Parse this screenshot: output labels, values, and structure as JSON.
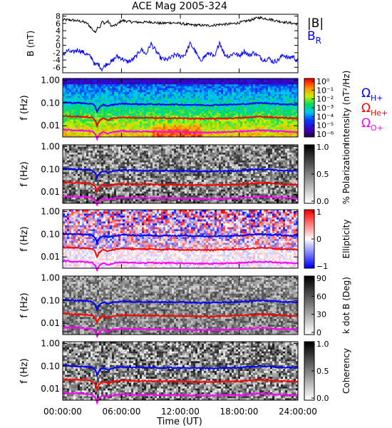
{
  "title": "ACE Mag 2005-324",
  "x_axis": {
    "label": "Time (UT)",
    "ticks": [
      "00:00:00",
      "06:00:00",
      "12:00:00",
      "18:00:00",
      "24:00:00"
    ],
    "range_hours": [
      0,
      24
    ]
  },
  "freq_ticks": [
    "1.00",
    "0.10",
    "0.01"
  ],
  "freq_range_hz": [
    0.0032,
    1.2
  ],
  "chart_data": [
    {
      "id": "field",
      "type": "line",
      "ylabel": "B (nT)",
      "ylim": [
        -7.5,
        8.5
      ],
      "yticks": [
        "8",
        "6",
        "4",
        "2",
        "0",
        "-2",
        "-4",
        "-6"
      ],
      "legend": [
        "|B|",
        "B_R"
      ],
      "series": [
        {
          "name": "|B|",
          "color": "#000000",
          "x": [
            0,
            1,
            2,
            2.5,
            3,
            3.3,
            3.6,
            3.8,
            4,
            4.3,
            4.6,
            5,
            5.5,
            6,
            7,
            8,
            9,
            10,
            11,
            12,
            13,
            14,
            15,
            16,
            17,
            18,
            19,
            20,
            21,
            22,
            23,
            24
          ],
          "y": [
            7.0,
            6.9,
            6.5,
            6.0,
            4.5,
            3.5,
            5.2,
            4.8,
            6.5,
            6.0,
            6.6,
            5.2,
            5.6,
            6.8,
            6.4,
            6.3,
            6.4,
            6.0,
            6.2,
            6.0,
            5.6,
            5.5,
            5.4,
            5.7,
            5.8,
            6.2,
            6.8,
            7.6,
            7.2,
            6.6,
            6.2,
            5.8
          ]
        },
        {
          "name": "B_R",
          "color": "#0000ff",
          "x": [
            0,
            0.5,
            1,
            1.5,
            2,
            2.5,
            3,
            3.3,
            3.6,
            4,
            4.5,
            5,
            5.5,
            6,
            6.5,
            7,
            7.5,
            8,
            8.5,
            9,
            9.5,
            10,
            10.5,
            11,
            11.5,
            12,
            12.5,
            13,
            13.5,
            14,
            14.5,
            15,
            15.5,
            16,
            16.5,
            17,
            17.5,
            18,
            18.5,
            19,
            19.5,
            20,
            20.5,
            21,
            21.5,
            22,
            22.5,
            23,
            23.5,
            24
          ],
          "y": [
            -2.5,
            -1.5,
            -2.0,
            -1.2,
            -1.8,
            -2.5,
            -3.5,
            -5.5,
            -5.0,
            -6.5,
            -5.0,
            -4.5,
            -3.0,
            -3.5,
            -4.5,
            -4.2,
            -3.0,
            -1.0,
            -2.5,
            0.5,
            -1.5,
            -3.5,
            -4.0,
            -3.5,
            -2.5,
            -3.0,
            -2.5,
            0.5,
            -1.5,
            -4.2,
            -3.0,
            -2.0,
            -3.5,
            1.0,
            -2.5,
            -3.0,
            -2.0,
            -3.0,
            -1.5,
            -2.8,
            -2.0,
            -3.0,
            -4.0,
            -3.5,
            -4.5,
            -4.0,
            -2.5,
            -3.5,
            -3.0,
            -4.5
          ]
        }
      ]
    },
    {
      "id": "intensity",
      "type": "heatmap",
      "ylabel": "f (Hz)",
      "colorbar": {
        "label": "Intensity (nT²/Hz)",
        "ticks": [
          "10⁰",
          "10⁻¹",
          "10⁻²",
          "10⁻³",
          "10⁻⁴",
          "10⁻⁵",
          "10⁻⁶"
        ],
        "colormap": "rainbow"
      },
      "gyro_labels": [
        {
          "text": "Ω_H+",
          "color": "#0000ff"
        },
        {
          "text": "Ω_He+",
          "color": "#ff0000"
        },
        {
          "text": "Ω_O+",
          "color": "#ff00ff"
        }
      ]
    },
    {
      "id": "polarization",
      "type": "heatmap",
      "ylabel": "f (Hz)",
      "colorbar": {
        "label": "% Polarization",
        "ticks": [
          "1.0",
          "0.5",
          "0.0"
        ],
        "colormap": "gray"
      }
    },
    {
      "id": "ellipticity",
      "type": "heatmap",
      "ylabel": "f (Hz)",
      "colorbar": {
        "label": "Ellipticity",
        "ticks": [
          "1",
          "0",
          "−1"
        ],
        "colormap": "blue-white-red"
      }
    },
    {
      "id": "kdotb",
      "type": "heatmap",
      "ylabel": "f (Hz)",
      "colorbar": {
        "label": "k dot B (Deg)",
        "ticks": [
          "90",
          "60",
          "30",
          "0"
        ],
        "colormap": "gray"
      }
    },
    {
      "id": "coherency",
      "type": "heatmap",
      "ylabel": "f (Hz)",
      "colorbar": {
        "label": "Coherency",
        "ticks": [
          "1.0",
          "0.5",
          "0.0"
        ],
        "colormap": "gray"
      }
    }
  ],
  "gyro_lines": {
    "x_hours": [
      0,
      0.5,
      1,
      1.5,
      2,
      2.5,
      3,
      3.3,
      3.5,
      3.7,
      3.9,
      4.2,
      4.6,
      5,
      5.5,
      6,
      7,
      8,
      9,
      10,
      11,
      12,
      13,
      14,
      15,
      16,
      17,
      18,
      19,
      20,
      21,
      22,
      23,
      24
    ],
    "series": [
      {
        "name": "Ω_H+",
        "color": "#0000ff",
        "f_hz": [
          0.108,
          0.105,
          0.1,
          0.102,
          0.098,
          0.095,
          0.09,
          0.07,
          0.04,
          0.062,
          0.075,
          0.085,
          0.07,
          0.082,
          0.088,
          0.094,
          0.09,
          0.088,
          0.089,
          0.085,
          0.087,
          0.085,
          0.083,
          0.082,
          0.08,
          0.084,
          0.085,
          0.087,
          0.093,
          0.1,
          0.098,
          0.09,
          0.087,
          0.085
        ]
      },
      {
        "name": "Ω_He+",
        "color": "#ff0000",
        "f_hz": [
          0.027,
          0.026,
          0.025,
          0.0255,
          0.0245,
          0.024,
          0.0225,
          0.0175,
          0.01,
          0.0155,
          0.019,
          0.0212,
          0.0175,
          0.0205,
          0.022,
          0.0235,
          0.0225,
          0.022,
          0.0222,
          0.0212,
          0.0218,
          0.0212,
          0.0208,
          0.0205,
          0.02,
          0.021,
          0.0212,
          0.0218,
          0.0232,
          0.025,
          0.0245,
          0.0225,
          0.0218,
          0.0212
        ]
      },
      {
        "name": "Ω_O+",
        "color": "#ff00ff",
        "f_hz": [
          0.0068,
          0.0066,
          0.0063,
          0.0064,
          0.0061,
          0.006,
          0.0056,
          0.0044,
          0.0025,
          0.0039,
          0.0047,
          0.0053,
          0.0044,
          0.0051,
          0.0055,
          0.0059,
          0.0056,
          0.0055,
          0.0056,
          0.0053,
          0.0055,
          0.0053,
          0.0052,
          0.0051,
          0.005,
          0.0052,
          0.0053,
          0.0055,
          0.0058,
          0.0062,
          0.0061,
          0.0056,
          0.0055,
          0.0053
        ]
      }
    ]
  }
}
